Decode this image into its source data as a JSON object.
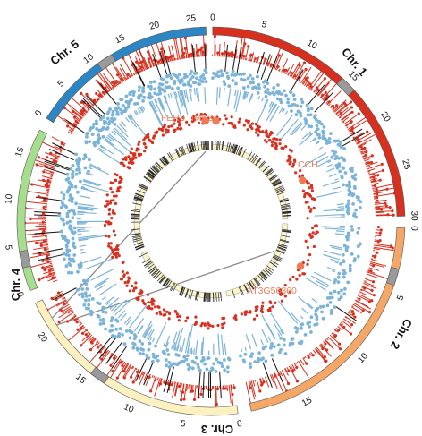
{
  "colors": {
    "chr1": "#d7301f",
    "chr2": "#f4a766",
    "chr3": "#fdf1bf",
    "chr4": "#a7dd8f",
    "chr5": "#2c86c4",
    "centromere": "#9a9a9a",
    "red_track": "#d7301f",
    "blue_track": "#7cb4d9",
    "black_mark": "#111111",
    "gene_label": "#ee7b55",
    "link": "#8a8a8a"
  },
  "chromosomes": [
    {
      "id": "chr1",
      "label": "Chr. 1",
      "length": 30,
      "ticks": [
        "0",
        "5",
        "10",
        "15",
        "20",
        "25",
        "30"
      ]
    },
    {
      "id": "chr2",
      "label": "Chr. 2",
      "length": 19,
      "ticks": [
        "0",
        "5",
        "10",
        "15"
      ]
    },
    {
      "id": "chr3",
      "label": "Chr. 3",
      "length": 23,
      "ticks": [
        "0",
        "5",
        "10",
        "15",
        "20"
      ]
    },
    {
      "id": "chr4",
      "label": "Chr. 4",
      "length": 18,
      "ticks": [
        "0",
        "5",
        "10",
        "15"
      ]
    },
    {
      "id": "chr5",
      "label": "Chr. 5",
      "length": 27,
      "ticks": [
        "0",
        "5",
        "10",
        "15",
        "20",
        "25"
      ]
    }
  ],
  "genes": [
    {
      "label": "FER3",
      "chr": "chr5",
      "pos": 26.2
    },
    {
      "label": "IMK3",
      "chr": "chr1",
      "pos": 0.8
    },
    {
      "label": "CCH",
      "chr": "chr1",
      "pos": 22.3
    },
    {
      "label": "AT3G56360",
      "chr": "chr2",
      "pos": 6.2
    }
  ],
  "links": [
    {
      "from_chr": "chr5",
      "from_pos": 25.6,
      "to_chr": "chr3",
      "to_pos": 21.0
    },
    {
      "from_chr": "chr2",
      "from_pos": 5.9,
      "to_chr": "chr3",
      "to_pos": 20.2
    }
  ]
}
